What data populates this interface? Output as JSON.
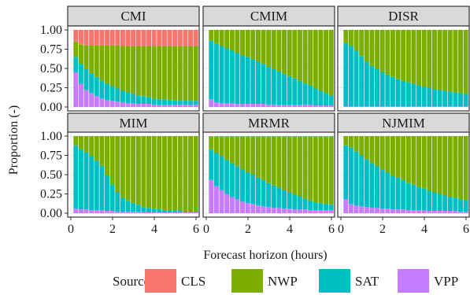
{
  "chart_data": {
    "type": "bar",
    "stacked": true,
    "xlabel": "Forecast horizon (hours)",
    "ylabel": "Proportion (-)",
    "ylim": [
      0,
      1
    ],
    "xlim": [
      0,
      6
    ],
    "x_ticks": [
      0,
      2,
      4,
      6
    ],
    "y_ticks": [
      0,
      0.25,
      0.5,
      0.75,
      1
    ],
    "y_tick_labels": [
      "0.00",
      "0.25",
      "0.50",
      "0.75",
      "1.00"
    ],
    "grid": true,
    "legend": {
      "title": "Source",
      "position": "bottom",
      "entries": [
        {
          "name": "CLS",
          "color": "#F8766D"
        },
        {
          "name": "NWP",
          "color": "#7CAE00"
        },
        {
          "name": "SAT",
          "color": "#00BFC4"
        },
        {
          "name": "VPP",
          "color": "#C77CFF"
        }
      ]
    },
    "stack_order": [
      "VPP",
      "SAT",
      "NWP",
      "CLS"
    ],
    "x": [
      0.25,
      0.5,
      0.75,
      1,
      1.25,
      1.5,
      1.75,
      2,
      2.25,
      2.5,
      2.75,
      3,
      3.25,
      3.5,
      3.75,
      4,
      4.25,
      4.5,
      4.75,
      5,
      5.25,
      5.5,
      5.75,
      6
    ],
    "panels": [
      {
        "name": "CMI",
        "series": [
          {
            "name": "VPP",
            "values": [
              0.45,
              0.3,
              0.22,
              0.18,
              0.14,
              0.11,
              0.09,
              0.08,
              0.07,
              0.06,
              0.05,
              0.05,
              0.04,
              0.04,
              0.04,
              0.03,
              0.03,
              0.03,
              0.03,
              0.03,
              0.03,
              0.03,
              0.03,
              0.03
            ]
          },
          {
            "name": "SAT",
            "values": [
              0.2,
              0.26,
              0.27,
              0.26,
              0.25,
              0.23,
              0.21,
              0.19,
              0.17,
              0.15,
              0.14,
              0.12,
              0.11,
              0.1,
              0.09,
              0.08,
              0.07,
              0.07,
              0.06,
              0.06,
              0.05,
              0.05,
              0.05,
              0.05
            ]
          },
          {
            "name": "NWP",
            "values": [
              0.2,
              0.25,
              0.31,
              0.36,
              0.41,
              0.46,
              0.5,
              0.53,
              0.56,
              0.58,
              0.6,
              0.62,
              0.64,
              0.65,
              0.66,
              0.68,
              0.69,
              0.69,
              0.7,
              0.7,
              0.71,
              0.71,
              0.71,
              0.71
            ]
          },
          {
            "name": "CLS",
            "values": [
              0.15,
              0.19,
              0.2,
              0.2,
              0.2,
              0.2,
              0.2,
              0.2,
              0.2,
              0.21,
              0.21,
              0.21,
              0.21,
              0.21,
              0.21,
              0.21,
              0.21,
              0.21,
              0.21,
              0.21,
              0.21,
              0.21,
              0.21,
              0.21
            ]
          }
        ]
      },
      {
        "name": "CMIM",
        "series": [
          {
            "name": "VPP",
            "values": [
              0.1,
              0.06,
              0.05,
              0.05,
              0.05,
              0.04,
              0.04,
              0.04,
              0.04,
              0.04,
              0.04,
              0.03,
              0.03,
              0.03,
              0.03,
              0.03,
              0.03,
              0.03,
              0.03,
              0.03,
              0.02,
              0.02,
              0.02,
              0.02
            ]
          },
          {
            "name": "SAT",
            "values": [
              0.76,
              0.76,
              0.74,
              0.71,
              0.68,
              0.66,
              0.63,
              0.61,
              0.58,
              0.55,
              0.52,
              0.49,
              0.46,
              0.43,
              0.4,
              0.37,
              0.34,
              0.31,
              0.28,
              0.25,
              0.22,
              0.19,
              0.16,
              0.13
            ]
          },
          {
            "name": "NWP",
            "values": [
              0.14,
              0.18,
              0.21,
              0.24,
              0.27,
              0.3,
              0.33,
              0.35,
              0.38,
              0.41,
              0.44,
              0.48,
              0.51,
              0.54,
              0.57,
              0.6,
              0.63,
              0.66,
              0.69,
              0.72,
              0.76,
              0.79,
              0.82,
              0.85
            ]
          },
          {
            "name": "CLS",
            "values": [
              0,
              0,
              0,
              0,
              0,
              0,
              0,
              0,
              0,
              0,
              0,
              0,
              0,
              0,
              0,
              0,
              0,
              0,
              0,
              0,
              0,
              0,
              0,
              0
            ]
          }
        ]
      },
      {
        "name": "DISR",
        "series": [
          {
            "name": "VPP",
            "values": [
              0.01,
              0.01,
              0.01,
              0.01,
              0.01,
              0.01,
              0.01,
              0.01,
              0.01,
              0.01,
              0.01,
              0.01,
              0.01,
              0.01,
              0.01,
              0.01,
              0.01,
              0.01,
              0.01,
              0.01,
              0.01,
              0.01,
              0.01,
              0.01
            ]
          },
          {
            "name": "SAT",
            "values": [
              0.82,
              0.78,
              0.72,
              0.65,
              0.58,
              0.52,
              0.48,
              0.44,
              0.41,
              0.38,
              0.35,
              0.33,
              0.31,
              0.29,
              0.27,
              0.25,
              0.24,
              0.22,
              0.21,
              0.2,
              0.19,
              0.18,
              0.17,
              0.16
            ]
          },
          {
            "name": "NWP",
            "values": [
              0.17,
              0.21,
              0.27,
              0.34,
              0.41,
              0.47,
              0.51,
              0.55,
              0.58,
              0.61,
              0.64,
              0.66,
              0.68,
              0.7,
              0.72,
              0.74,
              0.75,
              0.77,
              0.78,
              0.79,
              0.8,
              0.81,
              0.82,
              0.83
            ]
          },
          {
            "name": "CLS",
            "values": [
              0,
              0,
              0,
              0,
              0,
              0,
              0,
              0,
              0,
              0,
              0,
              0,
              0,
              0,
              0,
              0,
              0,
              0,
              0,
              0,
              0,
              0,
              0,
              0
            ]
          }
        ]
      },
      {
        "name": "MIM",
        "series": [
          {
            "name": "VPP",
            "values": [
              0.06,
              0.05,
              0.05,
              0.04,
              0.04,
              0.04,
              0.03,
              0.03,
              0.02,
              0.02,
              0.02,
              0.02,
              0.02,
              0.01,
              0.01,
              0.01,
              0.01,
              0.01,
              0.01,
              0.01,
              0.01,
              0.01,
              0.01,
              0.01
            ]
          },
          {
            "name": "SAT",
            "values": [
              0.82,
              0.78,
              0.74,
              0.7,
              0.64,
              0.57,
              0.46,
              0.34,
              0.25,
              0.18,
              0.14,
              0.11,
              0.09,
              0.07,
              0.06,
              0.05,
              0.04,
              0.03,
              0.03,
              0.02,
              0.02,
              0.01,
              0.01,
              0.01
            ]
          },
          {
            "name": "NWP",
            "values": [
              0.12,
              0.17,
              0.21,
              0.26,
              0.32,
              0.39,
              0.51,
              0.63,
              0.73,
              0.8,
              0.84,
              0.87,
              0.89,
              0.92,
              0.93,
              0.94,
              0.95,
              0.96,
              0.96,
              0.97,
              0.97,
              0.98,
              0.98,
              0.98
            ]
          },
          {
            "name": "CLS",
            "values": [
              0,
              0,
              0,
              0,
              0,
              0,
              0,
              0,
              0,
              0,
              0,
              0,
              0,
              0,
              0,
              0,
              0,
              0,
              0,
              0,
              0,
              0,
              0,
              0
            ]
          }
        ]
      },
      {
        "name": "MRMR",
        "series": [
          {
            "name": "VPP",
            "values": [
              0.43,
              0.35,
              0.3,
              0.25,
              0.21,
              0.18,
              0.15,
              0.13,
              0.12,
              0.1,
              0.09,
              0.08,
              0.07,
              0.07,
              0.06,
              0.06,
              0.05,
              0.05,
              0.05,
              0.04,
              0.04,
              0.04,
              0.04,
              0.04
            ]
          },
          {
            "name": "SAT",
            "values": [
              0.4,
              0.43,
              0.44,
              0.44,
              0.44,
              0.43,
              0.42,
              0.4,
              0.38,
              0.36,
              0.34,
              0.31,
              0.29,
              0.26,
              0.24,
              0.21,
              0.19,
              0.17,
              0.14,
              0.12,
              0.1,
              0.09,
              0.08,
              0.07
            ]
          },
          {
            "name": "NWP",
            "values": [
              0.16,
              0.21,
              0.25,
              0.3,
              0.34,
              0.38,
              0.42,
              0.46,
              0.49,
              0.53,
              0.56,
              0.6,
              0.63,
              0.66,
              0.69,
              0.72,
              0.75,
              0.77,
              0.8,
              0.83,
              0.85,
              0.86,
              0.87,
              0.88
            ]
          },
          {
            "name": "CLS",
            "values": [
              0.01,
              0.01,
              0.01,
              0.01,
              0.01,
              0.01,
              0.01,
              0.01,
              0.01,
              0.01,
              0.01,
              0.01,
              0.01,
              0.01,
              0.01,
              0.01,
              0.01,
              0.01,
              0.01,
              0.01,
              0.01,
              0.01,
              0.01,
              0.01
            ]
          }
        ]
      },
      {
        "name": "NJMIM",
        "series": [
          {
            "name": "VPP",
            "values": [
              0.18,
              0.12,
              0.1,
              0.09,
              0.08,
              0.07,
              0.07,
              0.06,
              0.06,
              0.05,
              0.05,
              0.05,
              0.04,
              0.04,
              0.04,
              0.04,
              0.03,
              0.03,
              0.03,
              0.03,
              0.03,
              0.03,
              0.02,
              0.02
            ]
          },
          {
            "name": "SAT",
            "values": [
              0.7,
              0.73,
              0.7,
              0.66,
              0.62,
              0.58,
              0.54,
              0.5,
              0.47,
              0.44,
              0.41,
              0.38,
              0.35,
              0.33,
              0.3,
              0.28,
              0.26,
              0.24,
              0.22,
              0.2,
              0.18,
              0.17,
              0.16,
              0.15
            ]
          },
          {
            "name": "NWP",
            "values": [
              0.12,
              0.15,
              0.2,
              0.25,
              0.3,
              0.35,
              0.39,
              0.44,
              0.47,
              0.51,
              0.54,
              0.57,
              0.61,
              0.63,
              0.66,
              0.68,
              0.71,
              0.73,
              0.75,
              0.77,
              0.79,
              0.8,
              0.82,
              0.83
            ]
          },
          {
            "name": "CLS",
            "values": [
              0,
              0,
              0,
              0,
              0,
              0,
              0,
              0,
              0,
              0,
              0,
              0,
              0,
              0,
              0,
              0,
              0,
              0,
              0,
              0,
              0,
              0,
              0,
              0
            ]
          }
        ]
      }
    ]
  }
}
